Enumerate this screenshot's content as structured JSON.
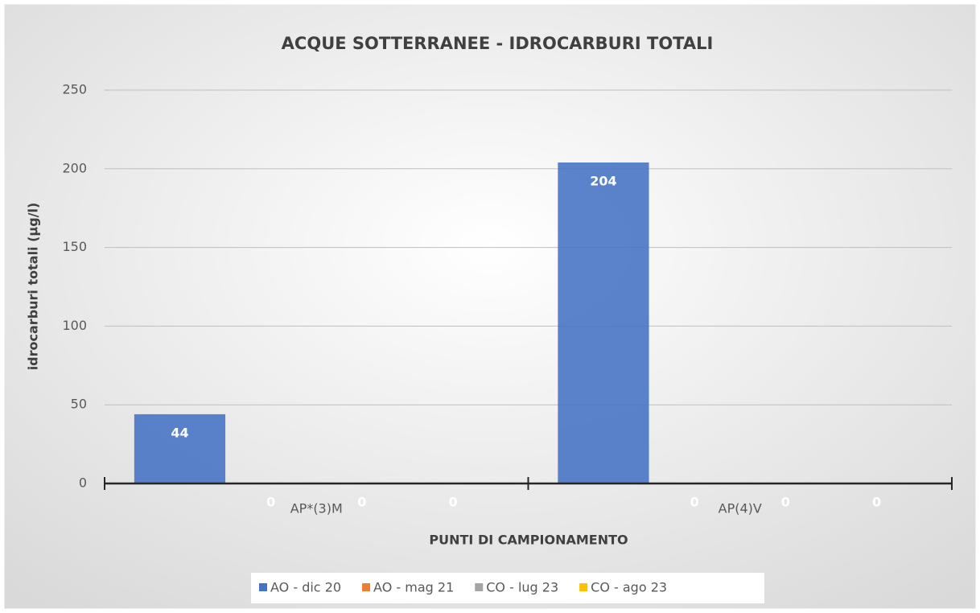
{
  "chart_data": {
    "type": "bar",
    "title": "ACQUE SOTTERRANEE - IDROCARBURI TOTALI",
    "y_label": "idrocarburi totali (µg/l)",
    "x_label": "PUNTI DI CAMPIONAMENTO",
    "categories": [
      "AP*(3)M",
      "AP(4)V"
    ],
    "series": [
      {
        "name": "AO - dic 20",
        "color": "#4472c4",
        "values": [
          44,
          204
        ]
      },
      {
        "name": "AO - mag 21",
        "color": "#ed7d31",
        "values": [
          0,
          0
        ]
      },
      {
        "name": "CO - lug 23",
        "color": "#a5a5a5",
        "values": [
          0,
          0
        ]
      },
      {
        "name": "CO - ago 23",
        "color": "#ffc000",
        "values": [
          0,
          0
        ]
      }
    ],
    "ylim": [
      0,
      250
    ],
    "yticks": [
      0,
      50,
      100,
      150,
      200,
      250
    ],
    "grid": true,
    "legend": "bottom",
    "data_labels": true
  }
}
